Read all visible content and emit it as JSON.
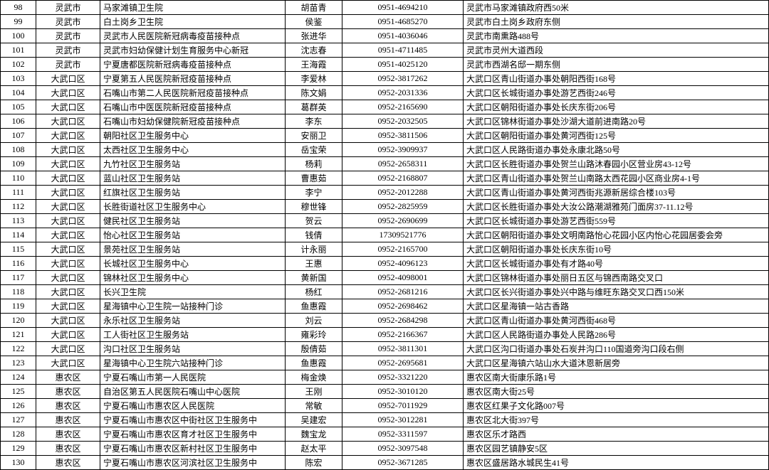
{
  "table": {
    "columns": [
      "index",
      "area",
      "site",
      "contact",
      "phone",
      "address"
    ],
    "rows": [
      {
        "index": "98",
        "area": "灵武市",
        "site": "马家滩镇卫生院",
        "contact": "胡苗青",
        "phone": "0951-4694210",
        "address": "灵武市马家滩镇政府西50米"
      },
      {
        "index": "99",
        "area": "灵武市",
        "site": "白土岗乡卫生院",
        "contact": "侯鉴",
        "phone": "0951-4685270",
        "address": "灵武市白土岗乡政府东侧"
      },
      {
        "index": "100",
        "area": "灵武市",
        "site": "灵武市人民医院新冠病毒疫苗接种点",
        "contact": "张进华",
        "phone": "0951-4036046",
        "address": "灵武市南熏路488号"
      },
      {
        "index": "101",
        "area": "灵武市",
        "site": "灵武市妇幼保健计划生育服务中心新冠",
        "contact": "沈志春",
        "phone": "0951-4711485",
        "address": "灵武市灵州大道西段"
      },
      {
        "index": "102",
        "area": "灵武市",
        "site": "宁夏唐都医院新冠病毒疫苗接种点",
        "contact": "王海霞",
        "phone": "0951-4025120",
        "address": "灵武市西湖名邸一期东侧"
      },
      {
        "index": "103",
        "area": "大武口区",
        "site": "宁夏第五人民医院新冠疫苗接种点",
        "contact": "李爱林",
        "phone": "0952-3817262",
        "address": "大武口区青山街道办事处朝阳西街168号"
      },
      {
        "index": "104",
        "area": "大武口区",
        "site": "石嘴山市第二人民医院新冠疫苗接种点",
        "contact": "陈文娟",
        "phone": "0952-2031336",
        "address": "大武口区长城街道办事处游艺西街246号"
      },
      {
        "index": "105",
        "area": "大武口区",
        "site": "石嘴山市中医医院新冠疫苗接种点",
        "contact": "葛群英",
        "phone": "0952-2165690",
        "address": "大武口区朝阳街道办事处长庆东街206号"
      },
      {
        "index": "106",
        "area": "大武口区",
        "site": "石嘴山市妇幼保健院新冠疫苗接种点",
        "contact": "李东",
        "phone": "0952-2032505",
        "address": "大武口区锦林街道办事处沙湖大道前进南路20号"
      },
      {
        "index": "107",
        "area": "大武口区",
        "site": "朝阳社区卫生服务中心",
        "contact": "安丽卫",
        "phone": "0952-3811506",
        "address": "大武口区朝阳街道办事处黄河西街125号"
      },
      {
        "index": "108",
        "area": "大武口区",
        "site": "太西社区卫生服务中心",
        "contact": "岳宝荣",
        "phone": "0952-3909937",
        "address": "大武口区人民路街道办事处永康北路50号"
      },
      {
        "index": "109",
        "area": "大武口区",
        "site": "九竹社区卫生服务站",
        "contact": "杨莉",
        "phone": "0952-2658311",
        "address": "大武口区长胜街道办事处贺兰山路沐春园小区营业房43-12号"
      },
      {
        "index": "110",
        "area": "大武口区",
        "site": "蓝山社区卫生服务站",
        "contact": "曹惠茹",
        "phone": "0952-2168807",
        "address": "大武口区青山街道办事处贺兰山南路太西花园小区商业房4-1号"
      },
      {
        "index": "111",
        "area": "大武口区",
        "site": "红旗社区卫生服务站",
        "contact": "李宁",
        "phone": "0952-2012288",
        "address": "大武口区青山街道办事处黄河西街兆源新居综合楼103号"
      },
      {
        "index": "112",
        "area": "大武口区",
        "site": "长胜街道社区卫生服务中心",
        "contact": "穆世锋",
        "phone": "0952-2825959",
        "address": "大武口区长胜街道办事处大汝公路潮湖雅苑门面房37-11.12号"
      },
      {
        "index": "113",
        "area": "大武口区",
        "site": "健民社区卫生服务站",
        "contact": "贺云",
        "phone": "0952-2690699",
        "address": "大武口区长城街道办事处游艺西街559号"
      },
      {
        "index": "114",
        "area": "大武口区",
        "site": "怡心社区卫生服务站",
        "contact": "钱倩",
        "phone": "17309521776",
        "address": "大武口区朝阳街道办事处文明南路怡心花园小区内怡心花园居委会旁"
      },
      {
        "index": "115",
        "area": "大武口区",
        "site": "景苑社区卫生服务站",
        "contact": "计永丽",
        "phone": "0952-2165700",
        "address": "大武口区朝阳街道办事处长庆东街10号"
      },
      {
        "index": "116",
        "area": "大武口区",
        "site": "长城社区卫生服务中心",
        "contact": "王惠",
        "phone": "0952-4096123",
        "address": "大武口区长城街道办事处有才路40号"
      },
      {
        "index": "117",
        "area": "大武口区",
        "site": "锦林社区卫生服务中心",
        "contact": "黄新国",
        "phone": "0952-4098001",
        "address": "大武口区锦林街道办事处丽日五区与锦西南路交叉口"
      },
      {
        "index": "118",
        "area": "大武口区",
        "site": "长兴卫生院",
        "contact": "杨红",
        "phone": "0952-2681216",
        "address": "大武口区长兴街道办事处兴中路与维旺东路交叉口西150米"
      },
      {
        "index": "119",
        "area": "大武口区",
        "site": "星海镇中心卫生院一站接种门诊",
        "contact": "鱼惠霞",
        "phone": "0952-2698462",
        "address": "大武口区星海镇一站古香路"
      },
      {
        "index": "120",
        "area": "大武口区",
        "site": "永乐社区卫生服务站",
        "contact": "刘云",
        "phone": "0952-2684298",
        "address": "大武口区青山街道办事处黄河西街468号"
      },
      {
        "index": "121",
        "area": "大武口区",
        "site": "工人街社区卫生服务站",
        "contact": "雍彩玲",
        "phone": "0952-2166367",
        "address": "大武口区人民路街道办事处人民路286号"
      },
      {
        "index": "122",
        "area": "大武口区",
        "site": "沟口社区卫生服务站",
        "contact": "殷倩茹",
        "phone": "0952-3811301",
        "address": "大武口区沟口街道办事处石炭井沟口110国道旁沟口段右侧"
      },
      {
        "index": "123",
        "area": "大武口区",
        "site": "星海镇中心卫生院六站接种门诊",
        "contact": "鱼惠霞",
        "phone": "0952-2695681",
        "address": "大武口区星海镇六站山水大道沐恩新居旁"
      },
      {
        "index": "124",
        "area": "惠农区",
        "site": "宁夏石嘴山市第一人民医院",
        "contact": "梅金焕",
        "phone": "0952-3321220",
        "address": "惠农区南大街康乐路1号"
      },
      {
        "index": "125",
        "area": "惠农区",
        "site": "自治区第五人民医院石嘴山中心医院",
        "contact": "王刚",
        "phone": "0952-3010120",
        "address": "惠农区南大街25号"
      },
      {
        "index": "126",
        "area": "惠农区",
        "site": "宁夏石嘴山市惠农区人民医院",
        "contact": "常敏",
        "phone": "0952-7011929",
        "address": "惠农区红果子文化路007号"
      },
      {
        "index": "127",
        "area": "惠农区",
        "site": "宁夏石嘴山市惠农区中街社区卫生服务中",
        "contact": "吴建宏",
        "phone": "0952-3012281",
        "address": "惠农区北大街397号"
      },
      {
        "index": "128",
        "area": "惠农区",
        "site": "宁夏石嘴山市惠农区育才社区卫生服务中",
        "contact": "魏宝龙",
        "phone": "0952-3311597",
        "address": "惠农区乐才路西"
      },
      {
        "index": "129",
        "area": "惠农区",
        "site": "宁夏石嘴山市惠农区新村社区卫生服务中",
        "contact": "赵太平",
        "phone": "0952-3097548",
        "address": "惠农区园艺镇静安5区"
      },
      {
        "index": "130",
        "area": "惠农区",
        "site": "宁夏石嘴山市惠农区河滨社区卫生服务中",
        "contact": "陈宏",
        "phone": "0952-3671285",
        "address": "惠农区盛居路水城民生41号"
      }
    ]
  }
}
